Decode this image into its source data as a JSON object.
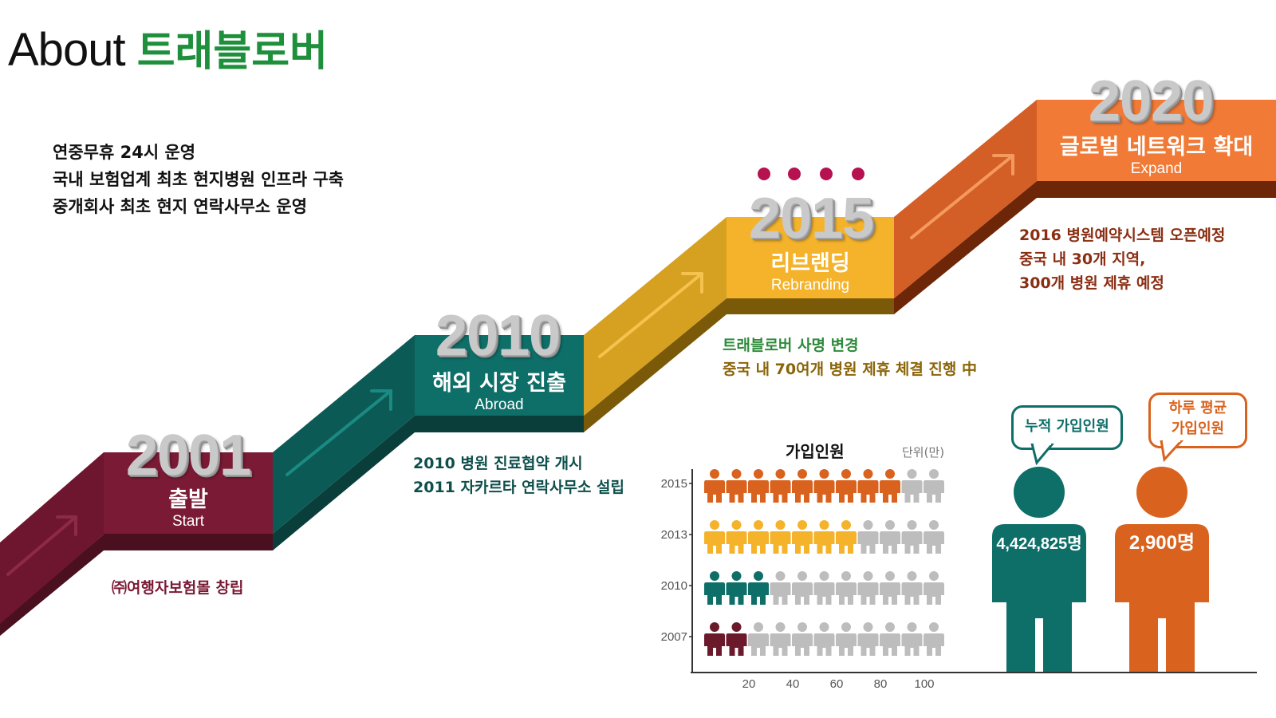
{
  "title": {
    "prefix": "About",
    "accent": "트래블로버"
  },
  "intro_notes": [
    "연중무휴 24시 운영",
    "국내 보험업계 최초 현지병원 인프라 구축",
    "중개회사 최초 현지 연락사무소 운영"
  ],
  "milestones": [
    {
      "year": "2001",
      "title_ko": "출발",
      "title_en": "Start",
      "color": "#7a1a35",
      "desc": [
        "㈜여행자보험몰 창립"
      ],
      "desc_color": "#7a1a35"
    },
    {
      "year": "2010",
      "title_ko": "해외 시장 진출",
      "title_en": "Abroad",
      "color": "#0e6e68",
      "desc": [
        "2010 병원 진료협약 개시",
        "2011 자카르타 연락사무소 설립"
      ],
      "desc_color": "#0e4f4b"
    },
    {
      "year": "2015",
      "title_ko": "리브랜딩",
      "title_en": "Rebranding",
      "color": "#f4b32b",
      "desc": [
        "트래블로버 사명 변경",
        "중국 내 70여개 병원 제휴 체결 진행 中"
      ],
      "desc_colors": [
        "#2e8b3a",
        "#8a6408"
      ]
    },
    {
      "year": "2020",
      "title_ko": "글로벌 네트워크 확대",
      "title_en": "Expand",
      "color": "#f07a36",
      "desc": [
        "2016 병원예약시스템 오픈예정",
        "중국 내 30개 지역,",
        "300개 병원 제휴 예정"
      ],
      "desc_color": "#8a2e12"
    }
  ],
  "chart_data": {
    "type": "bar",
    "title": "가입인원",
    "unit": "단위(만)",
    "categories": [
      "2015",
      "2013",
      "2010",
      "2007"
    ],
    "values": [
      85,
      65,
      25,
      15
    ],
    "xlim": [
      0,
      110
    ],
    "xticks": [
      20,
      40,
      60,
      80,
      100
    ],
    "icons_per_row": 11,
    "filled_icons": [
      9,
      7,
      3,
      2
    ],
    "colors": [
      "#d9621e",
      "#f4b32b",
      "#0e6e68",
      "#6b1a2c"
    ],
    "empty_color": "#bdbdbd"
  },
  "stats": {
    "total": {
      "bubble": [
        "누적 가입인원"
      ],
      "value": "4,424,825명",
      "color": "#0e6e68"
    },
    "daily": {
      "bubble": [
        "하루 평균",
        "가입인원"
      ],
      "value": "2,900명",
      "color": "#d9621e"
    }
  }
}
